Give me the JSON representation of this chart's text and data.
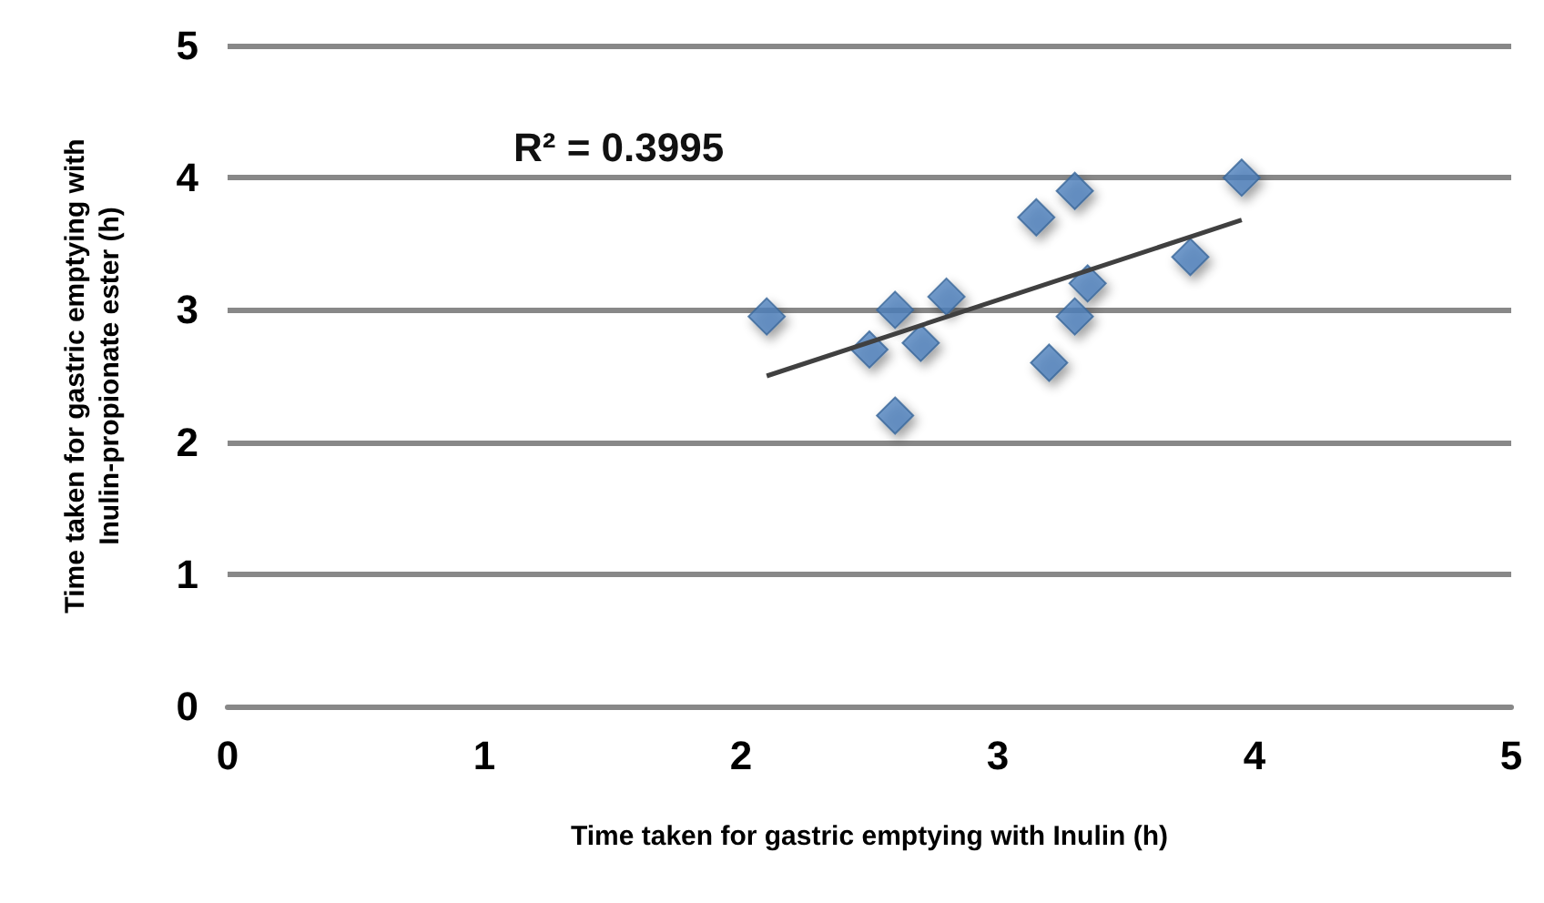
{
  "chart_data": {
    "type": "scatter",
    "xlabel": "Time taken for gastric emptying with Inulin (h)",
    "ylabel": "Time taken for gastric emptying with\nInulin-propionate ester (h)",
    "annotations": [
      "R² = 0.3995"
    ],
    "series": [
      {
        "color": "#4f81bd",
        "marker": "diamond",
        "x": [
          2.1,
          2.6,
          2.8,
          2.5,
          2.7,
          2.6,
          3.15,
          3.3,
          3.35,
          3.3,
          3.2,
          3.75,
          3.95
        ],
        "values": [
          2.95,
          3.0,
          3.1,
          2.7,
          2.75,
          2.2,
          3.7,
          3.9,
          3.2,
          2.95,
          2.6,
          3.4,
          4.0
        ]
      },
      {
        "type": "line",
        "color": "#404040",
        "marker": "none",
        "x": [
          2.1,
          3.95
        ],
        "values": [
          2.5,
          3.68
        ]
      }
    ],
    "xlim": [
      0,
      5
    ],
    "xticks": [
      0,
      1,
      2,
      3,
      4,
      5
    ],
    "ylim": [
      0,
      5
    ],
    "yticks": [
      0,
      1,
      2,
      3,
      4,
      5
    ],
    "grid": "y"
  }
}
